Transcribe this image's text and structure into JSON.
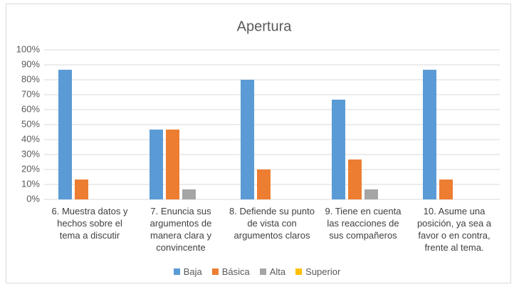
{
  "chart_data": {
    "type": "bar",
    "title": "Apertura",
    "categories": [
      "6. Muestra datos y hechos sobre el tema a discutir",
      "7. Enuncia sus argumentos de manera clara y convincente",
      "8. Defiende su punto de vista con argumentos claros",
      "9. Tiene en cuenta las reacciones de sus compañeros",
      "10. Asume una posición, ya sea a favor o en contra, frente al tema."
    ],
    "series": [
      {
        "name": "Baja",
        "color": "#5b9bd5",
        "values": [
          86.7,
          46.7,
          80,
          66.7,
          86.7
        ]
      },
      {
        "name": "Básica",
        "color": "#ed7d31",
        "values": [
          13.3,
          46.7,
          20,
          26.7,
          13.3
        ]
      },
      {
        "name": "Alta",
        "color": "#a5a5a5",
        "values": [
          0,
          6.7,
          0,
          6.7,
          0
        ]
      },
      {
        "name": "Superior",
        "color": "#ffc000",
        "values": [
          0,
          0,
          0,
          0,
          0
        ]
      }
    ],
    "ylim": [
      0,
      100
    ],
    "yticks": [
      {
        "value": 0,
        "label": "0%"
      },
      {
        "value": 10,
        "label": "10%"
      },
      {
        "value": 20,
        "label": "20%"
      },
      {
        "value": 30,
        "label": "30%"
      },
      {
        "value": 40,
        "label": "40%"
      },
      {
        "value": 50,
        "label": "50%"
      },
      {
        "value": 60,
        "label": "60%"
      },
      {
        "value": 70,
        "label": "70%"
      },
      {
        "value": 80,
        "label": "80%"
      },
      {
        "value": 90,
        "label": "90%"
      },
      {
        "value": 100,
        "label": "100%"
      }
    ],
    "grid": true,
    "legend": "bottom"
  }
}
